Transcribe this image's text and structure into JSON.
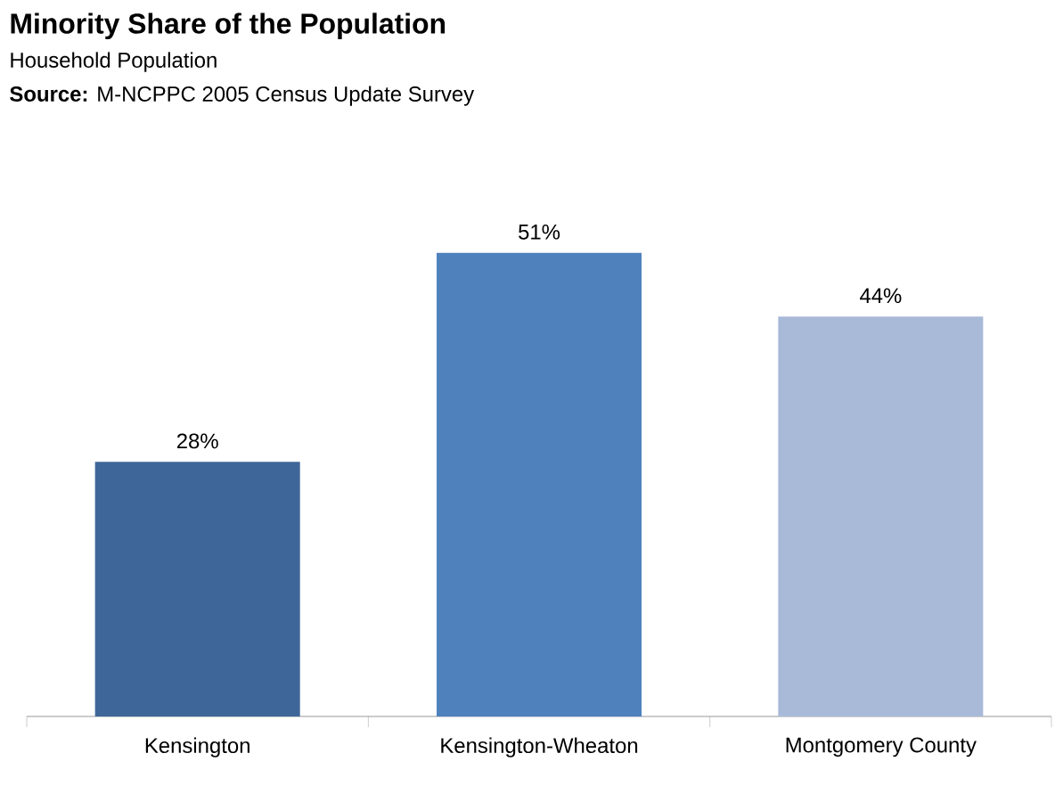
{
  "chart_data": {
    "type": "bar",
    "title": "Minority Share of the Population",
    "subtitle": "Household Population",
    "annotations": [
      "**Source:** M-NCPPC 2005 Census Update Survey"
    ],
    "categories": [
      "Kensington",
      "Kensington-Wheaton",
      "Montgomery County"
    ],
    "values": [
      28,
      51,
      44
    ],
    "value_labels": [
      "28%",
      "51%",
      "44%"
    ],
    "colors": [
      "#3f6698",
      "#4f81bd",
      "#a9b9d8"
    ]
  }
}
